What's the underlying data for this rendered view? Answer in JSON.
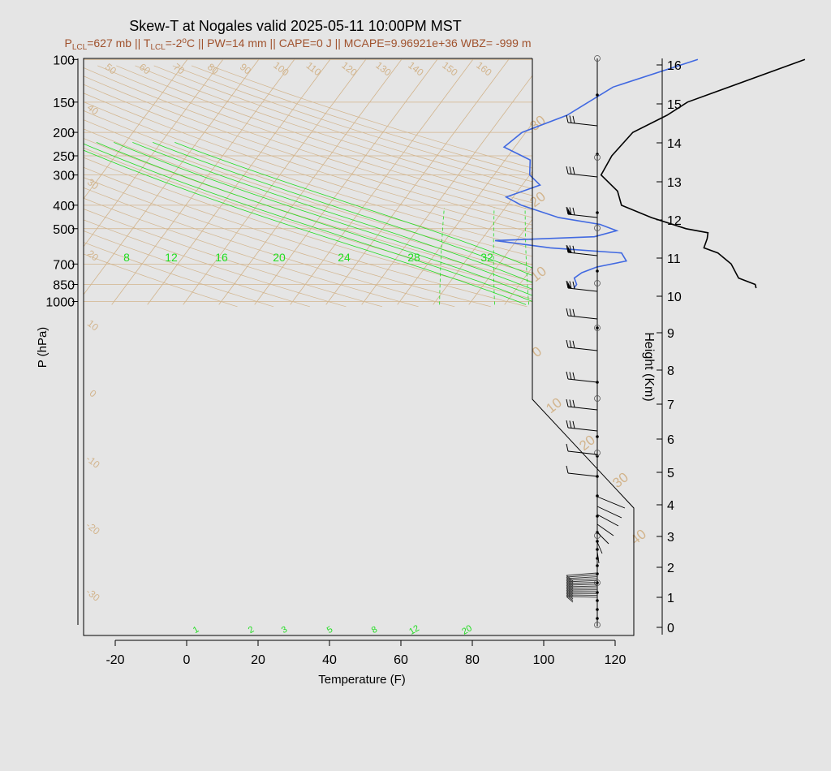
{
  "chart_data": {
    "type": "line",
    "title": "Skew-T at Nogales valid 2025-05-11 10:00PM MST",
    "subtitle": {
      "p_lcl_label": "P",
      "p_lcl_sub": "LCL",
      "p_lcl_value": "=627 mb || ",
      "t_lcl_label": "T",
      "t_lcl_sub": "LCL",
      "t_lcl_value": "=-2",
      "t_lcl_sup": "o",
      "rest": "C || PW=14 mm || CAPE=0 J || MCAPE=9.96921e+36 WBZ= -999 m"
    },
    "xlabel": "Temperature (F)",
    "ylabel": "P (hPa)",
    "y2label": "Height (Km)",
    "xlim": [
      -28,
      125
    ],
    "ylim": [
      1030,
      100
    ],
    "x_ticks": [
      "-20",
      "0",
      "20",
      "40",
      "60",
      "80",
      "100",
      "120"
    ],
    "y_ticks": [
      "100",
      "150",
      "200",
      "250",
      "300",
      "400",
      "500",
      "700",
      "850",
      "1000"
    ],
    "height_ticks": [
      "0",
      "1",
      "2",
      "3",
      "4",
      "5",
      "6",
      "7",
      "8",
      "9",
      "10",
      "11",
      "12",
      "13",
      "14",
      "15",
      "16"
    ],
    "isotherm_labels_top": [
      "50",
      "60",
      "70",
      "80",
      "90",
      "100",
      "110",
      "120",
      "130",
      "140",
      "150",
      "160"
    ],
    "isotherm_labels_left": [
      "40",
      "30",
      "20",
      "10",
      "0",
      "-10",
      "-20",
      "-30"
    ],
    "isotherm_labels_right": [
      "30",
      "20",
      "10",
      "0",
      "10",
      "20",
      "30",
      "40"
    ],
    "mixing_labels_top": [
      "8",
      "12",
      "16",
      "20",
      "24",
      "28",
      "32"
    ],
    "mixing_labels_bottom": [
      "1",
      "2",
      "3",
      "5",
      "8",
      "12",
      "20"
    ],
    "series": [
      {
        "color": "#000000",
        "p": [
          100,
          150,
          170,
          200,
          250,
          300,
          350,
          400,
          450,
          500,
          520,
          550,
          600,
          630,
          700,
          800,
          850,
          880
        ],
        "t": [
          53,
          29,
          26,
          20,
          19,
          20,
          28,
          32,
          43,
          55,
          62,
          63,
          64,
          69,
          75,
          80,
          86,
          87
        ]
      },
      {
        "color": "#4169e1",
        "p": [
          100,
          130,
          170,
          200,
          230,
          260,
          300,
          330,
          370,
          400,
          450,
          480,
          510,
          540,
          560,
          600,
          630,
          680,
          720,
          760,
          800,
          850,
          880
        ],
        "t": [
          23,
          5,
          -2,
          -11,
          -13,
          -3,
          0,
          5,
          -2,
          4,
          17,
          30,
          36,
          31,
          4,
          21,
          42,
          45,
          38,
          35,
          34,
          36,
          36
        ]
      }
    ]
  },
  "colors": {
    "temperature": "#000000",
    "dewpoint": "#4169e1",
    "isotherm": "#d2b48c",
    "mixing_ratio": "#22dd22",
    "background": "#e5e5e5"
  }
}
